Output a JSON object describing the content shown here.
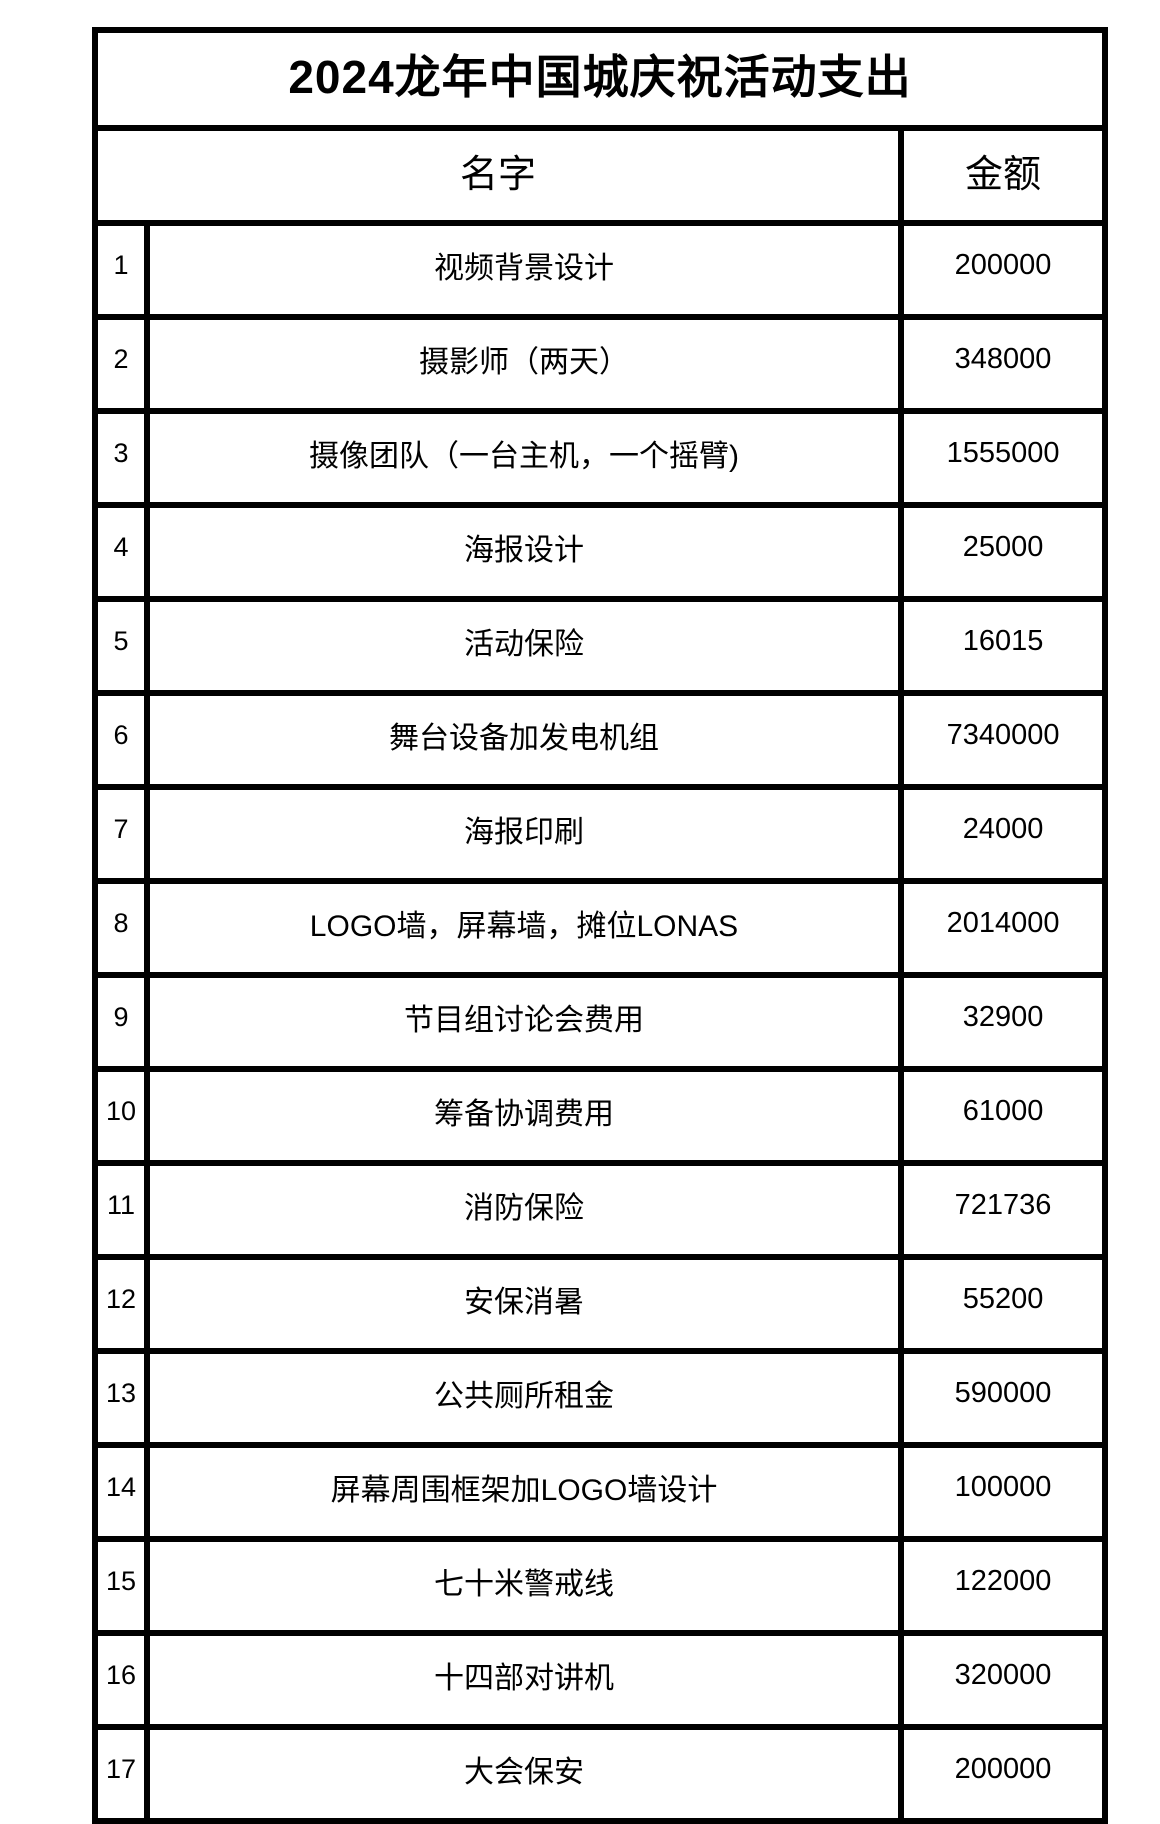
{
  "table": {
    "title": "2024龙年中国城庆祝活动支出",
    "columns": {
      "name": "名字",
      "amount": "金额"
    },
    "rows": [
      {
        "no": "1",
        "name": "视频背景设计",
        "amount": "200000"
      },
      {
        "no": "2",
        "name": "摄影师（两天）",
        "amount": "348000"
      },
      {
        "no": "3",
        "name": "摄像团队（一台主机，一个摇臂)",
        "amount": "1555000"
      },
      {
        "no": "4",
        "name": "海报设计",
        "amount": "25000"
      },
      {
        "no": "5",
        "name": "活动保险",
        "amount": "16015"
      },
      {
        "no": "6",
        "name": "舞台设备加发电机组",
        "amount": "7340000"
      },
      {
        "no": "7",
        "name": "海报印刷",
        "amount": "24000"
      },
      {
        "no": "8",
        "name": "LOGO墙，屏幕墙，摊位LONAS",
        "amount": "2014000"
      },
      {
        "no": "9",
        "name": "节目组讨论会费用",
        "amount": "32900"
      },
      {
        "no": "10",
        "name": "筹备协调费用",
        "amount": "61000"
      },
      {
        "no": "11",
        "name": "消防保险",
        "amount": "721736"
      },
      {
        "no": "12",
        "name": "安保消暑",
        "amount": "55200"
      },
      {
        "no": "13",
        "name": "公共厕所租金",
        "amount": "590000"
      },
      {
        "no": "14",
        "name": "屏幕周围框架加LOGO墙设计",
        "amount": "100000"
      },
      {
        "no": "15",
        "name": "七十米警戒线",
        "amount": "122000"
      },
      {
        "no": "16",
        "name": "十四部对讲机",
        "amount": "320000"
      },
      {
        "no": "17",
        "name": "大会保安",
        "amount": "200000"
      }
    ]
  },
  "colors": {
    "border": "#000000",
    "text": "#000000",
    "background": "#ffffff"
  }
}
